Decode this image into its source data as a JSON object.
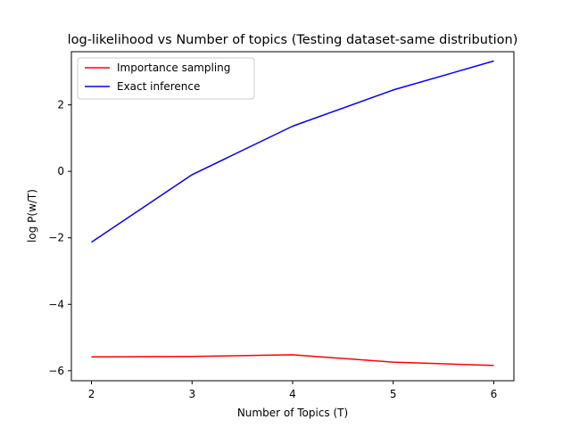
{
  "chart_data": {
    "type": "line",
    "title": "log-likelihood vs Number of topics (Testing dataset-same distribution)",
    "xlabel": "Number of Topics (T)",
    "ylabel": "log P(w/T)",
    "x": [
      2,
      3,
      4,
      5,
      6
    ],
    "xticks": [
      2,
      3,
      4,
      5,
      6
    ],
    "yticks": [
      -6,
      -4,
      -2,
      0,
      2
    ],
    "ytick_labels": [
      "−6",
      "−4",
      "−2",
      "0",
      "2"
    ],
    "xlim": [
      1.8,
      6.2
    ],
    "ylim": [
      -6.3,
      3.6
    ],
    "grid": false,
    "legend_position": "top-left",
    "series": [
      {
        "name": "Importance sampling",
        "color": "#ff0000",
        "values": [
          -5.58,
          -5.57,
          -5.52,
          -5.74,
          -5.84
        ]
      },
      {
        "name": "Exact inference",
        "color": "#0000ff",
        "values": [
          -2.13,
          -0.1,
          1.36,
          2.45,
          3.32
        ]
      }
    ]
  }
}
